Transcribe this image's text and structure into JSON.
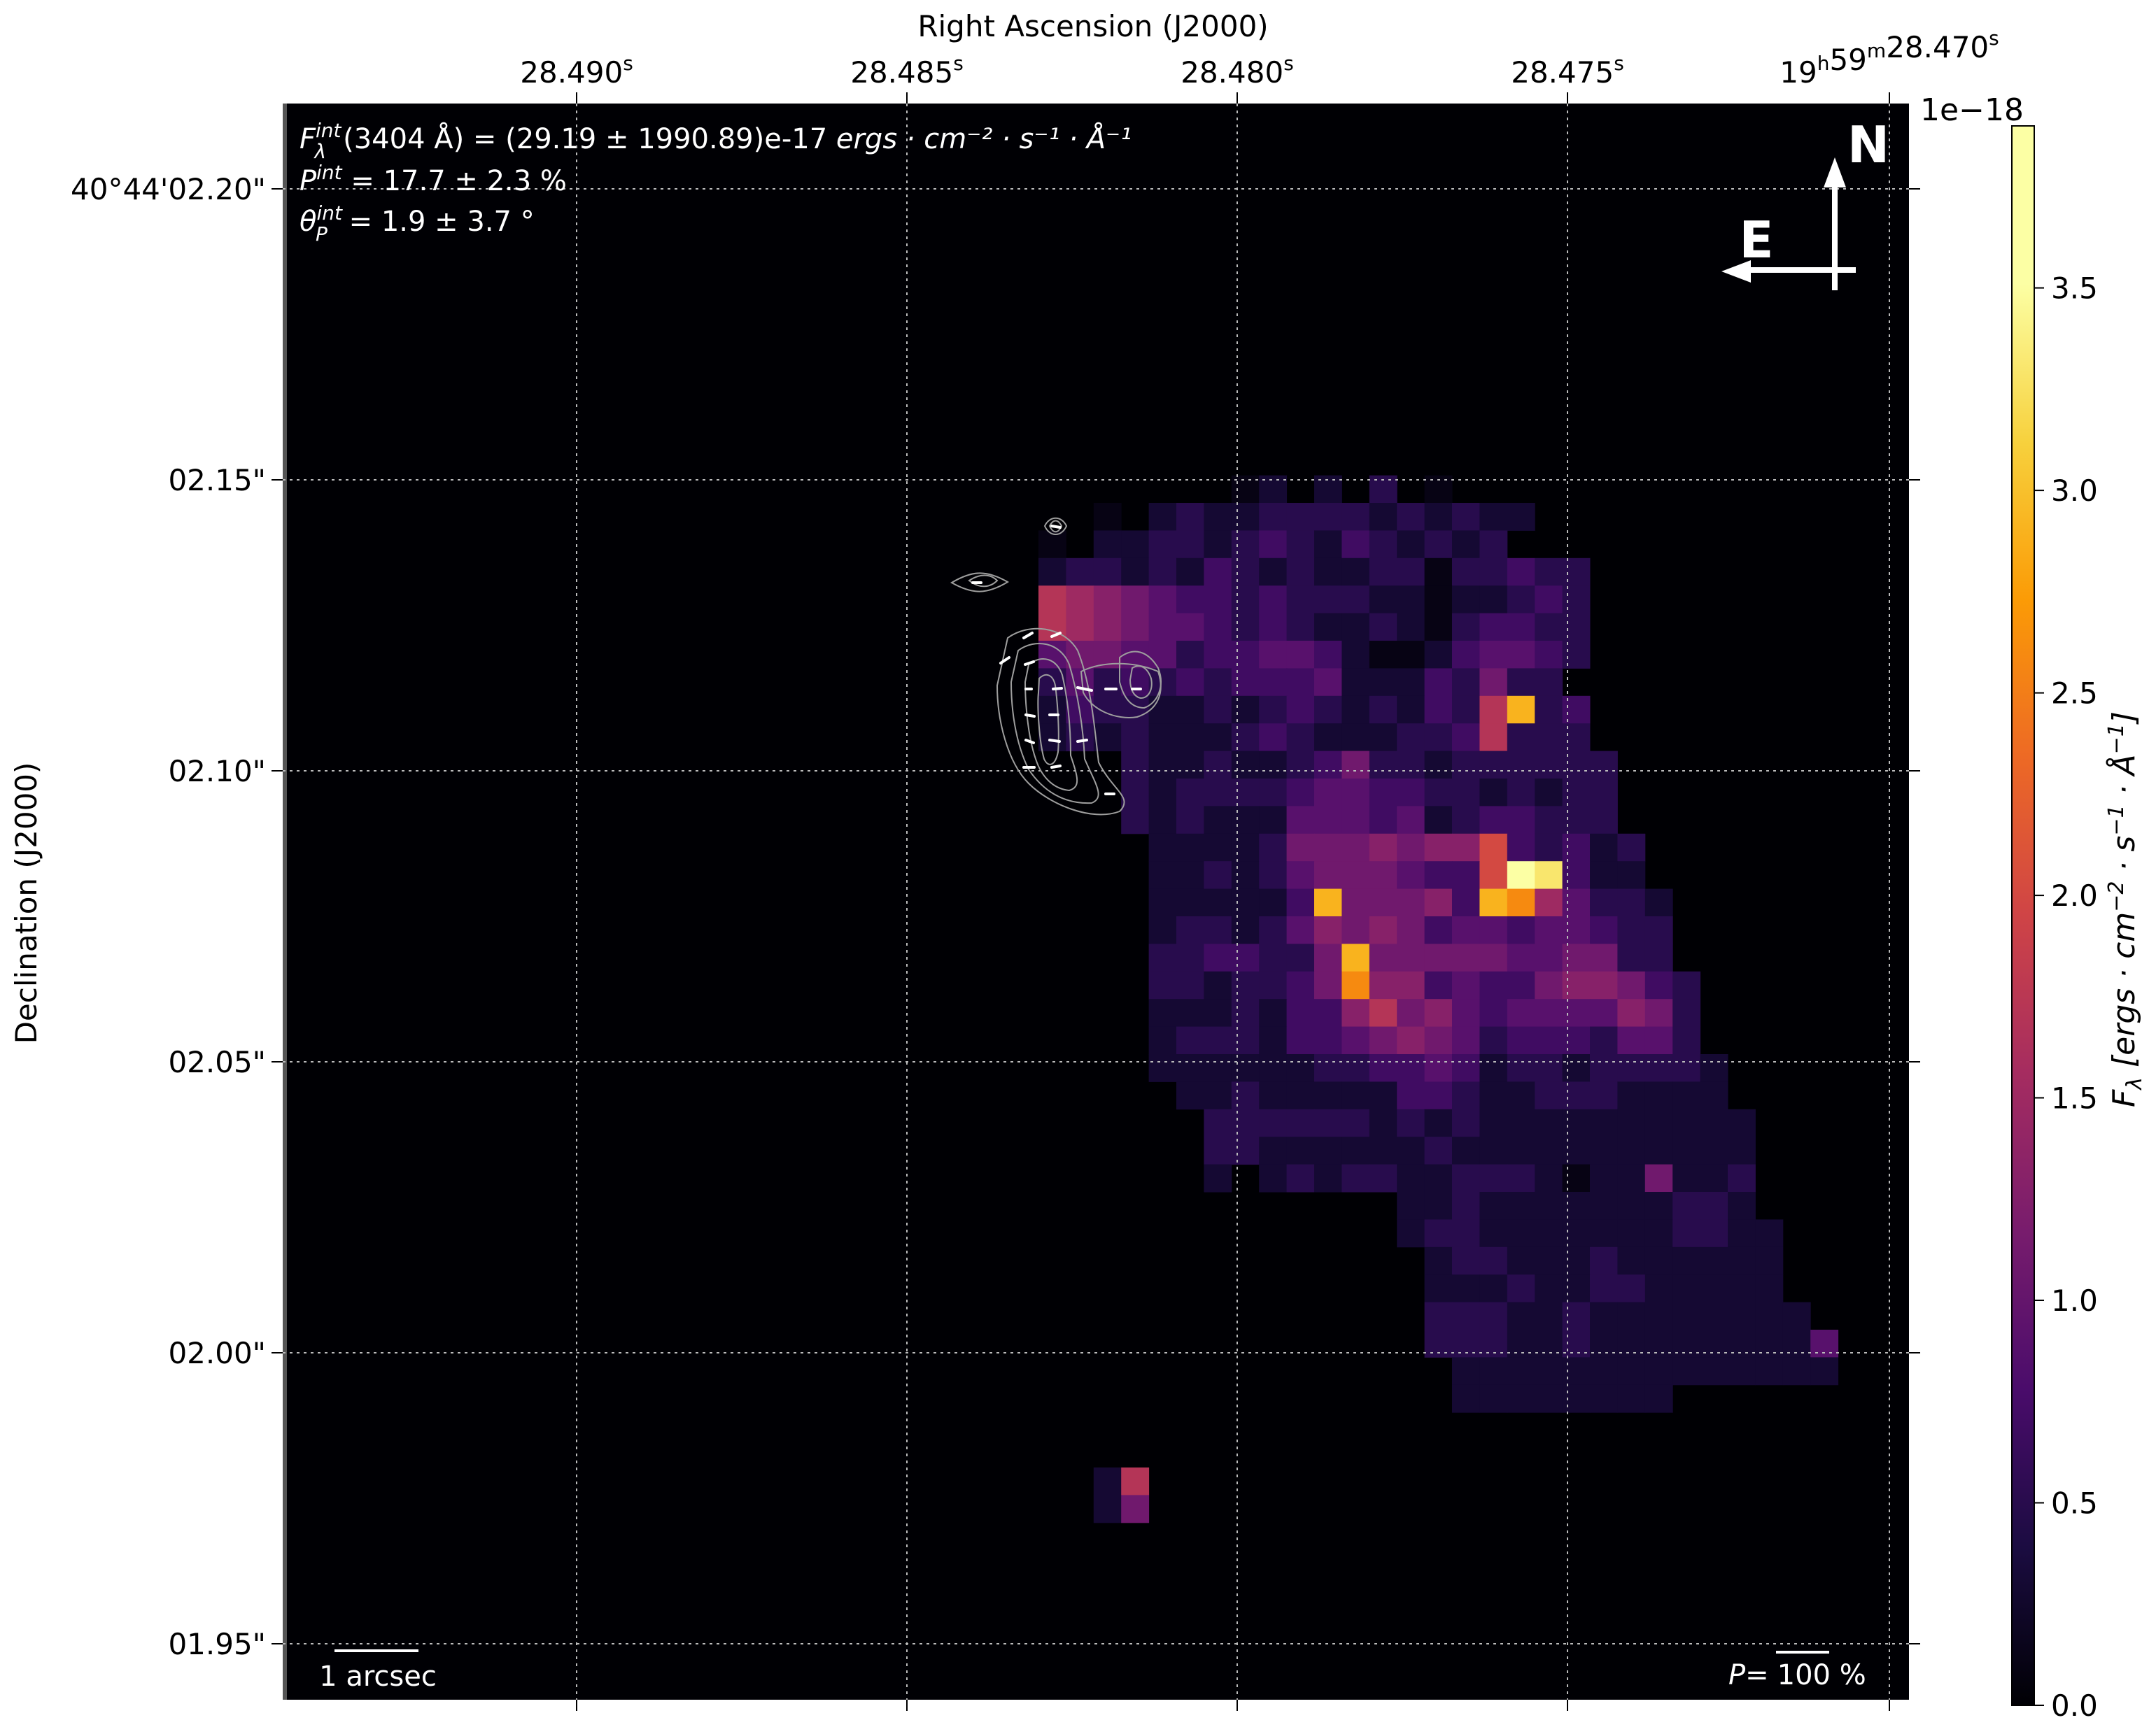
{
  "chart_data": {
    "type": "heatmap",
    "title": "",
    "xlabel": "Right Ascension (J2000)",
    "ylabel": "Declination (J2000)",
    "x_ticks": [
      {
        "pre": "28.490",
        "sup": "s"
      },
      {
        "pre": "28.485",
        "sup": "s"
      },
      {
        "pre": "28.480",
        "sup": "s"
      },
      {
        "pre": "28.475",
        "sup": "s"
      },
      {
        "pre": "19",
        "sup": "h",
        "mid": "59",
        "sup2": "m",
        "post": "28.470",
        "sup3": "s"
      }
    ],
    "y_ticks": [
      "40°44'02.20\"",
      "02.15\"",
      "02.10\"",
      "02.05\"",
      "02.00\"",
      "01.95\""
    ],
    "colorbar": {
      "label": "F_λ [ergs · cm⁻² · s⁻¹ · Å⁻¹]",
      "label_main": "F",
      "label_sub": "λ",
      "label_rest": " [ergs · cm",
      "exponent_label": "1e−18",
      "colormap": "inferno",
      "vmin": 0.0,
      "vmax": 3.9,
      "ticks": [
        "0.0",
        "0.5",
        "1.0",
        "1.5",
        "2.0",
        "2.5",
        "3.0",
        "3.5"
      ]
    },
    "annotations": {
      "flux": {
        "sym": "F",
        "sup": "int",
        "sub": "λ",
        "text": "(3404 Å) = (29.19 ± 1990.89)e-17 ",
        "units": "ergs · cm⁻² · s⁻¹ · Å⁻¹"
      },
      "pol_degree": {
        "sym": "P",
        "sup": "int",
        "text": " = 17.7 ± 2.3 %"
      },
      "pol_angle": {
        "sym": "θ",
        "sub": "P",
        "sup": "int",
        "text": " = 1.9 ± 3.7 °"
      },
      "north": "N",
      "east": "E",
      "scalebar": "1 arcsec",
      "pol_scale_prefix": "P=",
      "pol_scale_value": "100 %"
    },
    "grid": true,
    "pixel_map": {
      "note": "flux values in units of 1e-18, row 0 at top (north), col 0 at left (east)",
      "rows": [
        "..........................................................",
        "..........................................................",
        "..........................................................",
        "..........................................................",
        "..........................................................",
        "..........................................................",
        "..........................................................",
        "..........................................................",
        "..........................................................",
        "..........................................................",
        "..........................................................",
        "..........................................................",
        "..........................................................",
        "..........................................................",
        "...........................ab.b.c.a.......................",
        "......................a.bcbbccccbcbcbb....................",
        "....................a.bbccbcdcbdcbcbc.....................",
        "....................bccbcbdcbcbbccaccdcc..................",
        "....................ihgfeddcdcccbbabbcdc..................",
        "....................ihgfeedcdcbbcbacddcc..................",
        "....................effeecddeedbaabdeedc..................",
        "....................cecdcdcdddebbbdcfcc...................",
        "....................bdccbbcbcdcbcbdcimcd..................",
        "....................bcbcbbbcdcbbbccdiccc..................",
        ".......................cbbcbbcdfccbcccccc.................",
        ".......................cbccccdeeddccbcbcc.................",
        ".......................cbcbbbeeedebcddccc.................",
        "........................bbbbcfffgfggkdcdbc................",
        "........................bbcbcefffeddkqpdbb................",
        "........................bbbbbdmfffgdmlheccb...............",
        "........................bccbcegfgfdeedeedcc...............",
        "........................ccddccfmfffffeeffcc...............",
        "........................ccbccdflggdeddfggfdc..............",
        "........................bbbcbddgifgedeeeegfc..............",
        "........................bcccbddefgfecdddceec..............",
        "........................bbbbbbccddedbccbccccb.............",
        ".........................bbcbbbbbddcbbcccbbbb.............",
        "..........................ccccccbcbcbbbbbbbbbb............",
        "..........................ccbbbbbbcbbbbbbbbbbb............",
        "..........................b.bcbccbbcccbabbfbbc............",
        ".................................bbcbbbbbbbccb............",
        ".................................bccbbbbbbbccbb...........",
        "..................................bccbbbcbbbbbb...........",
        "..................................bbbcbbccbbbbb...........",
        "..................................cccbbcbbbbbbbb..........",
        "..................................cccbbcbbbbbbbbe.........",
        "...................................bbbbbbbbbbbbbb.........",
        "...................................bbbbbbbb...............",
        "..........................................................",
        "...........................................................",
        "......................bi..................................",
        "......................bf..................................",
        "..........................................................",
        "..........................................................",
        "..........................................................",
        "..........................................................",
        "..........................................................",
        ".........................................................."
      ]
    },
    "pixel_legend": {
      ".": 0.0,
      "a": 0.1,
      "b": 0.3,
      "c": 0.5,
      "d": 0.7,
      "e": 0.9,
      "f": 1.1,
      "g": 1.3,
      "h": 1.5,
      "i": 1.7,
      "k": 2.0,
      "l": 2.6,
      "m": 2.9,
      "p": 3.3,
      "q": 3.9
    }
  }
}
